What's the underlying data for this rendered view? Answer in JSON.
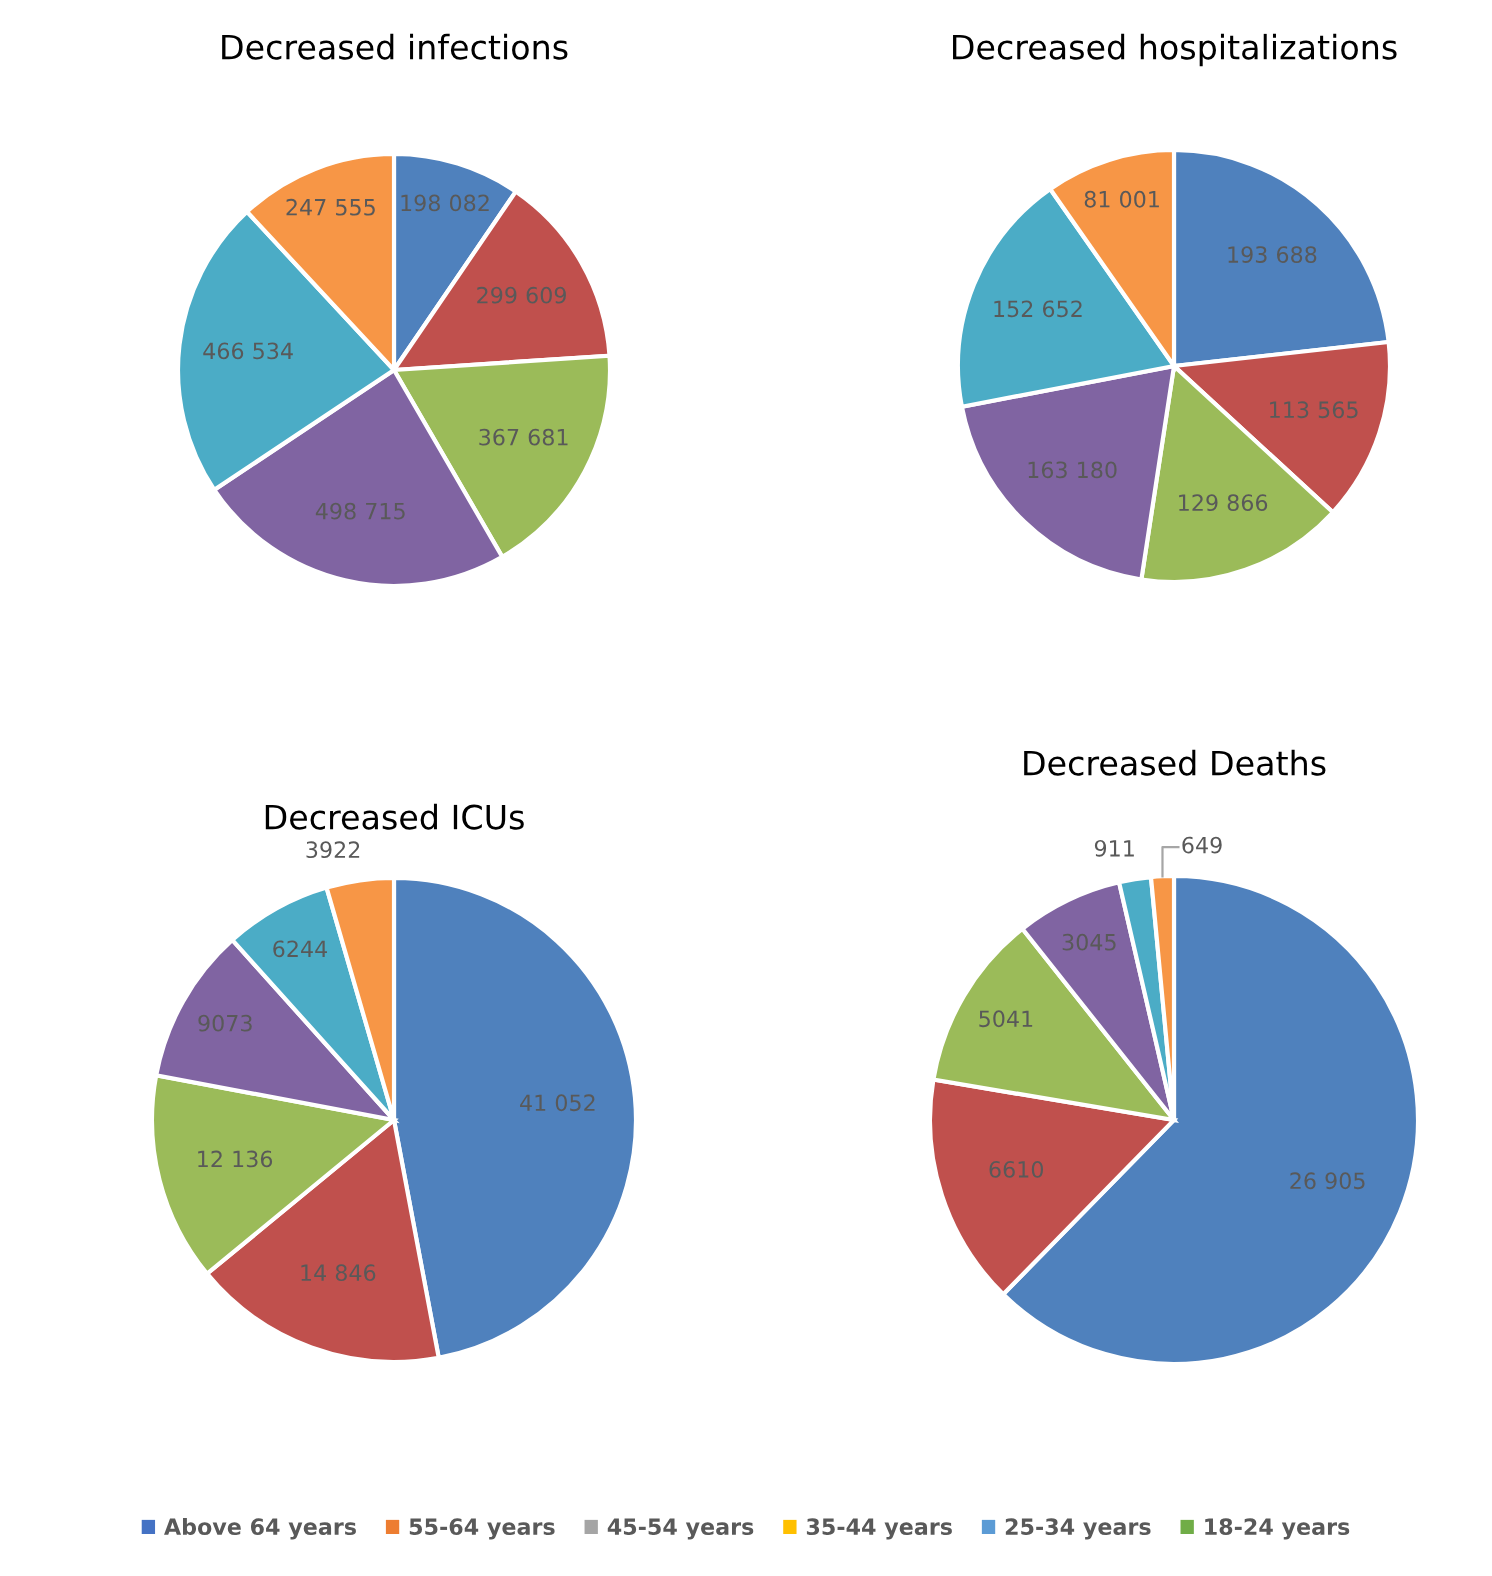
{
  "chart_data": [
    {
      "type": "pie",
      "title": "Decreased infections",
      "categories": [
        null,
        null,
        null,
        null,
        null,
        null
      ],
      "values": [
        198082,
        299609,
        367681,
        498715,
        466534,
        247555
      ],
      "value_labels": [
        "198 082",
        "299 609",
        "367 681",
        "498 715",
        "466 534",
        "247 555"
      ],
      "colors": [
        "#4f81bd",
        "#c0504d",
        "#9bbb59",
        "#8064a2",
        "#4bacc6",
        "#f79646"
      ]
    },
    {
      "type": "pie",
      "title": "Decreased hospitalizations",
      "categories": [
        null,
        null,
        null,
        null,
        null,
        null
      ],
      "values": [
        193688,
        113565,
        129866,
        163180,
        152652,
        81001
      ],
      "value_labels": [
        "193 688",
        "113 565",
        "129 866",
        "163 180",
        "152 652",
        "81 001"
      ],
      "colors": [
        "#4f81bd",
        "#c0504d",
        "#9bbb59",
        "#8064a2",
        "#4bacc6",
        "#f79646"
      ]
    },
    {
      "type": "pie",
      "title": "Decreased ICUs",
      "categories": [
        null,
        null,
        null,
        null,
        null,
        null
      ],
      "values": [
        41052,
        14846,
        12136,
        9073,
        6244,
        3922
      ],
      "value_labels": [
        "41 052",
        "14 846",
        "12 136",
        "9073",
        "6244",
        "3922"
      ],
      "colors": [
        "#4f81bd",
        "#c0504d",
        "#9bbb59",
        "#8064a2",
        "#4bacc6",
        "#f79646"
      ]
    },
    {
      "type": "pie",
      "title": "Decreased Deaths",
      "categories": [
        null,
        null,
        null,
        null,
        null,
        null
      ],
      "values": [
        26905,
        6610,
        5041,
        3045,
        911,
        649
      ],
      "value_labels": [
        "26 905",
        "6610",
        "5041",
        "3045",
        "911",
        "649"
      ],
      "colors": [
        "#4f81bd",
        "#c0504d",
        "#9bbb59",
        "#8064a2",
        "#4bacc6",
        "#f79646"
      ]
    },
    {
      "type": "other",
      "categories": [
        "Above 64 years",
        "55-64 years",
        "45-54 years",
        "35-44 years",
        "25-34 years",
        "18-24 years"
      ],
      "colors": [
        "#4472c4",
        "#ed7d31",
        "#a5a5a5",
        "#ffc000",
        "#5b9bd5",
        "#70ad47"
      ]
    }
  ]
}
